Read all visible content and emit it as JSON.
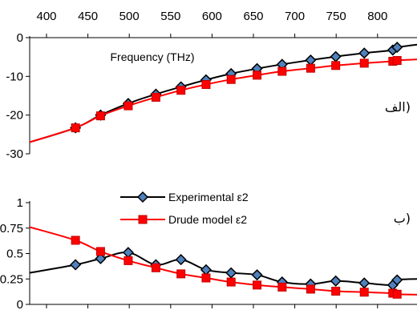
{
  "chart_data": [
    {
      "type": "line",
      "panel_label": "الف)",
      "xlabel": "Frequency (THz)",
      "x_ticks": [
        "400",
        "450",
        "500",
        "550",
        "600",
        "650",
        "700",
        "750",
        "800"
      ],
      "y_ticks": [
        "0",
        "-10",
        "-20",
        "-30"
      ],
      "xlim": [
        372,
        820
      ],
      "ylim": [
        -30,
        0
      ],
      "series": [
        {
          "color": "#000000",
          "marker": "diamond",
          "marker_fill": "#4f81bd",
          "x": [
            425,
            454,
            486,
            518,
            547,
            576,
            605,
            635,
            664,
            697,
            726,
            759,
            792,
            797
          ],
          "y": [
            -23.3,
            -20.0,
            -17.0,
            -14.6,
            -12.7,
            -10.9,
            -9.3,
            -8.0,
            -6.9,
            -5.8,
            -4.9,
            -4.0,
            -3.2,
            -2.5
          ],
          "curve_y_start": -27,
          "curve_y_end": -1.8
        },
        {
          "color": "#ff0000",
          "marker": "square",
          "marker_fill": "#ff0000",
          "x": [
            425,
            454,
            486,
            518,
            547,
            576,
            605,
            635,
            664,
            697,
            726,
            759,
            792,
            797
          ],
          "y": [
            -23.3,
            -20.2,
            -17.6,
            -15.4,
            -13.6,
            -12.1,
            -10.8,
            -9.7,
            -8.7,
            -7.9,
            -7.2,
            -6.6,
            -6.1,
            -5.9
          ],
          "curve_y_start": -27,
          "curve_y_end": -5.6
        }
      ]
    },
    {
      "type": "line",
      "panel_label": "ب)",
      "y_ticks": [
        "0",
        "0.25",
        "0.5",
        "0.75",
        "1"
      ],
      "ylim": [
        0,
        1
      ],
      "xlim": [
        372,
        820
      ],
      "legend": "top-center",
      "series": [
        {
          "name": "Experimental ε2",
          "color": "#000000",
          "marker": "diamond",
          "marker_fill": "#4f81bd",
          "x": [
            425,
            454,
            486,
            518,
            547,
            576,
            605,
            635,
            664,
            697,
            726,
            759,
            792,
            797
          ],
          "y": [
            0.39,
            0.45,
            0.51,
            0.39,
            0.44,
            0.34,
            0.31,
            0.29,
            0.22,
            0.2,
            0.23,
            0.21,
            0.19,
            0.24
          ],
          "curve_y_start": 0.31,
          "curve_y_end": 0.25
        },
        {
          "name": "Drude model ε2",
          "color": "#ff0000",
          "marker": "square",
          "marker_fill": "#ff0000",
          "x": [
            425,
            454,
            486,
            518,
            547,
            576,
            605,
            635,
            664,
            697,
            726,
            759,
            792,
            797
          ],
          "y": [
            0.63,
            0.52,
            0.43,
            0.36,
            0.3,
            0.26,
            0.22,
            0.19,
            0.17,
            0.15,
            0.13,
            0.12,
            0.11,
            0.1
          ],
          "curve_y_start": 0.76,
          "curve_y_end": 0.095
        }
      ]
    }
  ]
}
